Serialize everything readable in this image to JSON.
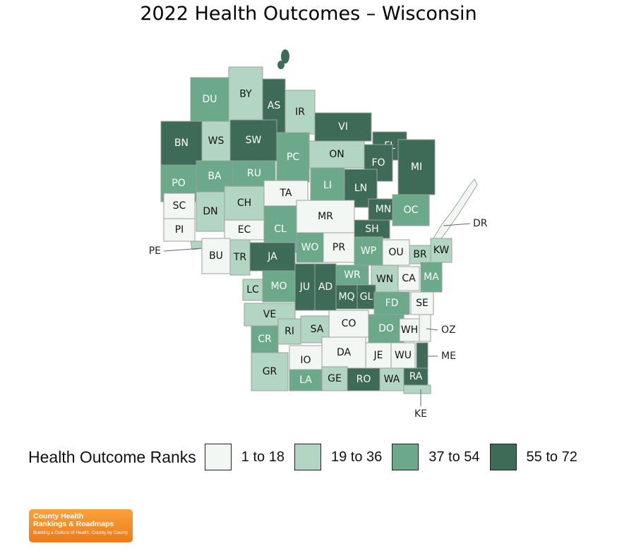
{
  "title": "2022 Health Outcomes – Wisconsin",
  "legend": {
    "title": "Health Outcome Ranks",
    "items": [
      {
        "label": "1 to 18",
        "color": "#f2f7f4"
      },
      {
        "label": "19 to 36",
        "color": "#b3d5c3"
      },
      {
        "label": "37 to 54",
        "color": "#6ca98b"
      },
      {
        "label": "55 to 72",
        "color": "#3d6b57"
      }
    ]
  },
  "counties": [
    {
      "code": "DU",
      "band": 3
    },
    {
      "code": "BY",
      "band": 2
    },
    {
      "code": "AS",
      "band": 4
    },
    {
      "code": "IR",
      "band": 2
    },
    {
      "code": "BN",
      "band": 4
    },
    {
      "code": "WS",
      "band": 2
    },
    {
      "code": "SW",
      "band": 4
    },
    {
      "code": "VI",
      "band": 4
    },
    {
      "code": "FL",
      "band": 4
    },
    {
      "code": "PC",
      "band": 3
    },
    {
      "code": "ON",
      "band": 2
    },
    {
      "code": "FO",
      "band": 4
    },
    {
      "code": "MI",
      "band": 4
    },
    {
      "code": "PO",
      "band": 3
    },
    {
      "code": "BA",
      "band": 3
    },
    {
      "code": "RU",
      "band": 3
    },
    {
      "code": "LI",
      "band": 3
    },
    {
      "code": "LN",
      "band": 4
    },
    {
      "code": "TA",
      "band": 1
    },
    {
      "code": "SC",
      "band": 1
    },
    {
      "code": "DN",
      "band": 2
    },
    {
      "code": "CH",
      "band": 2
    },
    {
      "code": "MR",
      "band": 1
    },
    {
      "code": "MN",
      "band": 4
    },
    {
      "code": "OC",
      "band": 3
    },
    {
      "code": "DR",
      "band": 1
    },
    {
      "code": "PI",
      "band": 1
    },
    {
      "code": "EC",
      "band": 1
    },
    {
      "code": "CL",
      "band": 3
    },
    {
      "code": "SH",
      "band": 4
    },
    {
      "code": "PE",
      "band": 2
    },
    {
      "code": "BU",
      "band": 1
    },
    {
      "code": "WO",
      "band": 3
    },
    {
      "code": "PR",
      "band": 1
    },
    {
      "code": "WP",
      "band": 3
    },
    {
      "code": "OU",
      "band": 1
    },
    {
      "code": "BR",
      "band": 2
    },
    {
      "code": "KW",
      "band": 2
    },
    {
      "code": "TR",
      "band": 2
    },
    {
      "code": "JA",
      "band": 4
    },
    {
      "code": "WR",
      "band": 3
    },
    {
      "code": "WN",
      "band": 2
    },
    {
      "code": "CA",
      "band": 1
    },
    {
      "code": "MA",
      "band": 3
    },
    {
      "code": "LC",
      "band": 2
    },
    {
      "code": "MO",
      "band": 3
    },
    {
      "code": "JU",
      "band": 4
    },
    {
      "code": "AD",
      "band": 4
    },
    {
      "code": "MQ",
      "band": 4
    },
    {
      "code": "GL",
      "band": 4
    },
    {
      "code": "FD",
      "band": 3
    },
    {
      "code": "SE",
      "band": 1
    },
    {
      "code": "VE",
      "band": 2
    },
    {
      "code": "SA",
      "band": 2
    },
    {
      "code": "CO",
      "band": 1
    },
    {
      "code": "DO",
      "band": 3
    },
    {
      "code": "WH",
      "band": 1
    },
    {
      "code": "OZ",
      "band": 1
    },
    {
      "code": "RI",
      "band": 2
    },
    {
      "code": "CR",
      "band": 3
    },
    {
      "code": "GR",
      "band": 2
    },
    {
      "code": "IO",
      "band": 1
    },
    {
      "code": "DA",
      "band": 1
    },
    {
      "code": "JE",
      "band": 1
    },
    {
      "code": "WU",
      "band": 1
    },
    {
      "code": "ME",
      "band": 4
    },
    {
      "code": "LA",
      "band": 3
    },
    {
      "code": "GE",
      "band": 2
    },
    {
      "code": "RO",
      "band": 4
    },
    {
      "code": "WA",
      "band": 2
    },
    {
      "code": "RA",
      "band": 4
    },
    {
      "code": "KE",
      "band": 2
    }
  ]
}
